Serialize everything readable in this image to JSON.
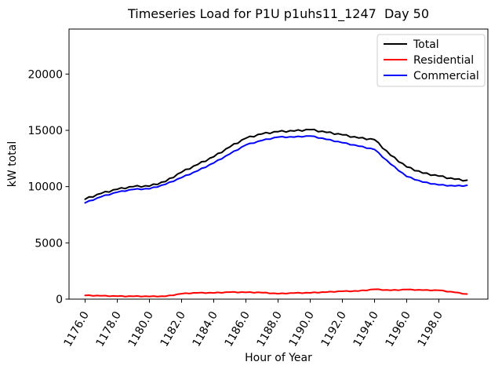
{
  "chart_data": {
    "type": "line",
    "title": "Timeseries Load for P1U p1uhs11_1247  Day 50",
    "xlabel": "Hour of Year",
    "ylabel": "kW total",
    "xlim": [
      1175.0,
      1201.05
    ],
    "ylim": [
      0,
      24000
    ],
    "grid": false,
    "legend_position": "upper right",
    "background": "#ffffff",
    "x_ticks": [
      1176,
      1178,
      1180,
      1182,
      1184,
      1186,
      1188,
      1190,
      1192,
      1194,
      1196,
      1198
    ],
    "x_tick_labels": [
      "1176.0",
      "1178.0",
      "1180.0",
      "1182.0",
      "1184.0",
      "1186.0",
      "1188.0",
      "1190.0",
      "1192.0",
      "1194.0",
      "1196.0",
      "1198.0"
    ],
    "y_ticks": [
      0,
      5000,
      10000,
      15000,
      20000
    ],
    "y_tick_labels": [
      "0",
      "5000",
      "10000",
      "15000",
      "20000"
    ],
    "x": [
      1176.0,
      1176.25,
      1176.5,
      1176.75,
      1177.0,
      1177.25,
      1177.5,
      1177.75,
      1178.0,
      1178.25,
      1178.5,
      1178.75,
      1179.0,
      1179.25,
      1179.5,
      1179.75,
      1180.0,
      1180.25,
      1180.5,
      1180.75,
      1181.0,
      1181.25,
      1181.5,
      1181.75,
      1182.0,
      1182.25,
      1182.5,
      1182.75,
      1183.0,
      1183.25,
      1183.5,
      1183.75,
      1184.0,
      1184.25,
      1184.5,
      1184.75,
      1185.0,
      1185.25,
      1185.5,
      1185.75,
      1186.0,
      1186.25,
      1186.5,
      1186.75,
      1187.0,
      1187.25,
      1187.5,
      1187.75,
      1188.0,
      1188.25,
      1188.5,
      1188.75,
      1189.0,
      1189.25,
      1189.5,
      1189.75,
      1190.0,
      1190.25,
      1190.5,
      1190.75,
      1191.0,
      1191.25,
      1191.5,
      1191.75,
      1192.0,
      1192.25,
      1192.5,
      1192.75,
      1193.0,
      1193.25,
      1193.5,
      1193.75,
      1194.0,
      1194.25,
      1194.5,
      1194.75,
      1195.0,
      1195.25,
      1195.5,
      1195.75,
      1196.0,
      1196.25,
      1196.5,
      1196.75,
      1197.0,
      1197.25,
      1197.5,
      1197.75,
      1198.0,
      1198.25,
      1198.5,
      1198.75,
      1199.0,
      1199.25,
      1199.5,
      1199.75
    ],
    "series": [
      {
        "name": "Total",
        "color": "#000000",
        "values": [
          8880,
          9083,
          9075,
          9308,
          9390,
          9558,
          9515,
          9713,
          9760,
          9896,
          9820,
          9986,
          10000,
          10086,
          9960,
          10076,
          10040,
          10218,
          10185,
          10393,
          10450,
          10733,
          10805,
          11118,
          11280,
          11525,
          11560,
          11835,
          11960,
          12208,
          12245,
          12523,
          12650,
          12943,
          13025,
          13348,
          13520,
          13790,
          13850,
          14150,
          14300,
          14470,
          14430,
          14630,
          14680,
          14805,
          14720,
          14875,
          14880,
          14970,
          14850,
          14970,
          14940,
          15045,
          14940,
          15075,
          15060,
          15075,
          14880,
          14925,
          14820,
          14840,
          14650,
          14700,
          14600,
          14605,
          14400,
          14435,
          14320,
          14358,
          14185,
          14253,
          14170,
          13898,
          13415,
          13173,
          12780,
          12598,
          12205,
          12053,
          11750,
          11688,
          11415,
          11383,
          11200,
          11208,
          11005,
          11043,
          10930,
          10935,
          10730,
          10765,
          10650,
          10683,
          10505,
          10568
        ]
      },
      {
        "name": "Residential",
        "color": "#ff0000",
        "values": [
          330,
          350,
          285,
          320,
          290,
          313,
          250,
          288,
          260,
          288,
          230,
          273,
          250,
          278,
          220,
          263,
          240,
          273,
          220,
          268,
          250,
          338,
          340,
          443,
          480,
          530,
          495,
          560,
          560,
          588,
          530,
          573,
          550,
          598,
          560,
          623,
          620,
          645,
          585,
          625,
          600,
          625,
          565,
          605,
          580,
          585,
          505,
          525,
          480,
          525,
          485,
          545,
          540,
          575,
          525,
          575,
          560,
          605,
          565,
          625,
          620,
          670,
          635,
          700,
          700,
          735,
          685,
          735,
          720,
          788,
          770,
          853,
          870,
          878,
          800,
          823,
          780,
          828,
          790,
          853,
          850,
          868,
          800,
          833,
          800,
          825,
          765,
          805,
          780,
          765,
          665,
          665,
          600,
          575,
          465,
          455
        ]
      },
      {
        "name": "Commercial",
        "color": "#0000ff",
        "values": [
          8550,
          8733,
          8790,
          8988,
          9100,
          9245,
          9265,
          9425,
          9500,
          9608,
          9590,
          9713,
          9750,
          9808,
          9740,
          9813,
          9800,
          9945,
          9965,
          10125,
          10200,
          10395,
          10465,
          10675,
          10800,
          10995,
          11065,
          11275,
          11400,
          11620,
          11715,
          11950,
          12100,
          12345,
          12465,
          12725,
          12900,
          13145,
          13265,
          13525,
          13700,
          13845,
          13865,
          14025,
          14100,
          14220,
          14215,
          14350,
          14400,
          14445,
          14365,
          14425,
          14400,
          14470,
          14415,
          14500,
          14500,
          14470,
          14315,
          14300,
          14200,
          14170,
          14015,
          14000,
          13900,
          13870,
          13715,
          13700,
          13600,
          13570,
          13415,
          13400,
          13300,
          13020,
          12615,
          12350,
          12000,
          11770,
          11415,
          11200,
          10900,
          10820,
          10615,
          10550,
          10400,
          10383,
          10240,
          10238,
          10150,
          10170,
          10065,
          10100,
          10050,
          10108,
          10040,
          10113
        ]
      }
    ]
  }
}
